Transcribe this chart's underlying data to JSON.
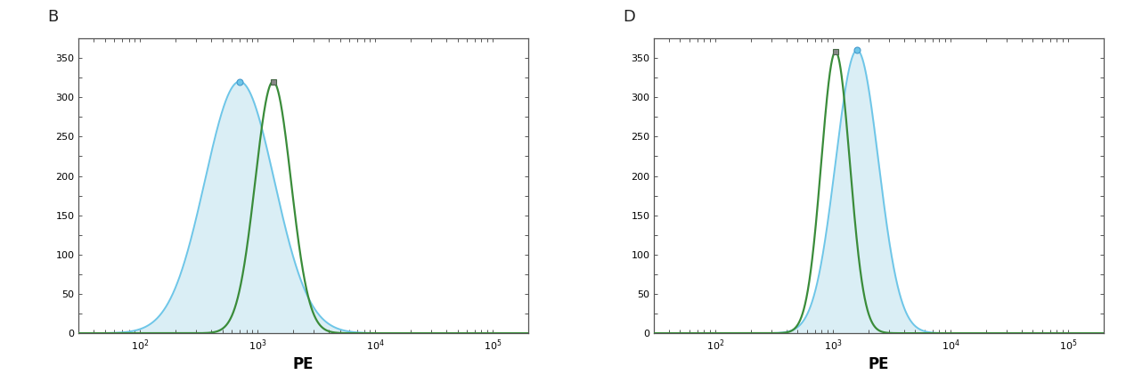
{
  "panel_B": {
    "label": "B",
    "blue_peak": 700,
    "blue_sigma": 0.68,
    "blue_height": 320,
    "green_peak": 1350,
    "green_sigma": 0.35,
    "green_height": 320,
    "fill_color": "#daeef5",
    "blue_color": "#6ec6e8",
    "green_color": "#3a8c3a",
    "xlabel": "PE",
    "ylim": [
      0,
      375
    ],
    "yticks": [
      0,
      50,
      100,
      150,
      200,
      250,
      300,
      350
    ],
    "xlim_log": [
      30,
      200000
    ]
  },
  "panel_D": {
    "label": "D",
    "blue_peak": 1600,
    "blue_sigma": 0.42,
    "blue_height": 360,
    "green_peak": 1050,
    "green_sigma": 0.28,
    "green_height": 358,
    "fill_color": "#daeef5",
    "blue_color": "#6ec6e8",
    "green_color": "#3a8c3a",
    "xlabel": "PE",
    "ylim": [
      0,
      375
    ],
    "yticks": [
      0,
      50,
      100,
      150,
      200,
      250,
      300,
      350
    ],
    "xlim_log": [
      30,
      200000
    ]
  },
  "bg_color": "#ffffff",
  "panel_bg": "#ffffff",
  "spine_color": "#555555",
  "tick_color": "#555555",
  "label_fontsize": 13,
  "tick_labelsize": 8,
  "xlabel_fontsize": 12,
  "marker_size_blue": 5,
  "marker_size_green": 4
}
